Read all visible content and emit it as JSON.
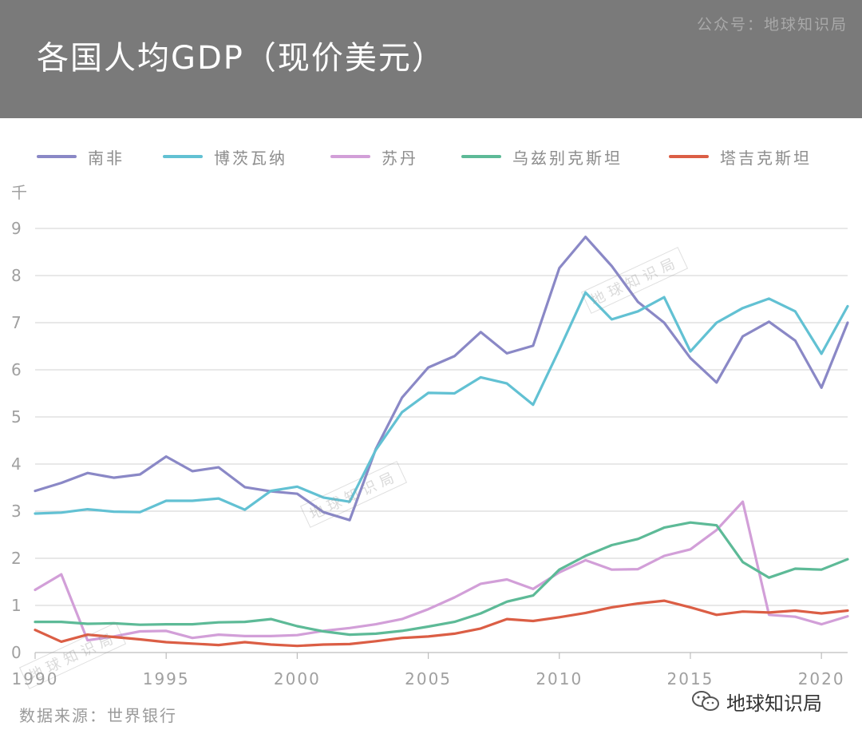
{
  "header": {
    "title": "各国人均GDP（现价美元）",
    "brand": "公众号：地球知识局"
  },
  "footer": {
    "source": "数据来源：世界银行",
    "brand": "地球知识局"
  },
  "watermark": "地球知识局",
  "colors": {
    "header_bg": "#7a7a7a",
    "grid": "#d9d9d9",
    "axis_text": "#a0a0a0"
  },
  "chart_data": {
    "type": "line",
    "title": "各国人均GDP（现价美元）",
    "ylabel": "千",
    "xlabel": "",
    "ylim": [
      0,
      9
    ],
    "xlim": [
      1990,
      2021
    ],
    "grid": true,
    "legend_position": "top",
    "x_ticks": [
      1990,
      1995,
      2000,
      2005,
      2010,
      2015,
      2020
    ],
    "y_ticks": [
      0,
      1,
      2,
      3,
      4,
      5,
      6,
      7,
      8,
      9
    ],
    "x": [
      1990,
      1991,
      1992,
      1993,
      1994,
      1995,
      1996,
      1997,
      1998,
      1999,
      2000,
      2001,
      2002,
      2003,
      2004,
      2005,
      2006,
      2007,
      2008,
      2009,
      2010,
      2011,
      2012,
      2013,
      2014,
      2015,
      2016,
      2017,
      2018,
      2019,
      2020,
      2021
    ],
    "series": [
      {
        "name": "南非",
        "color": "#8a88c6",
        "values": [
          3.43,
          3.6,
          3.81,
          3.71,
          3.78,
          4.16,
          3.85,
          3.93,
          3.51,
          3.42,
          3.37,
          2.98,
          2.81,
          4.32,
          5.41,
          6.05,
          6.29,
          6.8,
          6.35,
          6.51,
          8.16,
          8.82,
          8.2,
          7.44,
          7.0,
          6.25,
          5.73,
          6.71,
          7.02,
          6.62,
          5.62,
          7.0
        ]
      },
      {
        "name": "博茨瓦纳",
        "color": "#62c1d3",
        "values": [
          2.95,
          2.97,
          3.04,
          2.99,
          2.98,
          3.22,
          3.22,
          3.27,
          3.03,
          3.43,
          3.52,
          3.29,
          3.2,
          4.3,
          5.1,
          5.51,
          5.5,
          5.84,
          5.71,
          5.26,
          6.43,
          7.64,
          7.07,
          7.24,
          7.54,
          6.39,
          7.0,
          7.31,
          7.51,
          7.24,
          6.34,
          7.35
        ]
      },
      {
        "name": "苏丹",
        "color": "#d29fd8",
        "values": [
          1.33,
          1.66,
          0.26,
          0.34,
          0.45,
          0.46,
          0.31,
          0.38,
          0.35,
          0.35,
          0.37,
          0.46,
          0.52,
          0.6,
          0.71,
          0.92,
          1.17,
          1.46,
          1.55,
          1.35,
          1.7,
          1.96,
          1.76,
          1.77,
          2.05,
          2.19,
          2.6,
          3.2,
          0.8,
          0.76,
          0.6,
          0.77
        ]
      },
      {
        "name": "乌兹别克斯坦",
        "color": "#5dba97",
        "values": [
          0.65,
          0.65,
          0.61,
          0.62,
          0.59,
          0.6,
          0.6,
          0.64,
          0.65,
          0.71,
          0.56,
          0.45,
          0.38,
          0.4,
          0.46,
          0.55,
          0.65,
          0.83,
          1.08,
          1.21,
          1.76,
          2.05,
          2.28,
          2.41,
          2.65,
          2.76,
          2.7,
          1.92,
          1.59,
          1.78,
          1.76,
          1.98
        ]
      },
      {
        "name": "塔吉克斯坦",
        "color": "#db5e45",
        "values": [
          0.48,
          0.23,
          0.38,
          0.33,
          0.28,
          0.22,
          0.19,
          0.16,
          0.22,
          0.17,
          0.14,
          0.17,
          0.18,
          0.24,
          0.31,
          0.34,
          0.4,
          0.51,
          0.71,
          0.67,
          0.75,
          0.84,
          0.96,
          1.04,
          1.1,
          0.96,
          0.8,
          0.87,
          0.85,
          0.89,
          0.83,
          0.89
        ]
      }
    ]
  }
}
